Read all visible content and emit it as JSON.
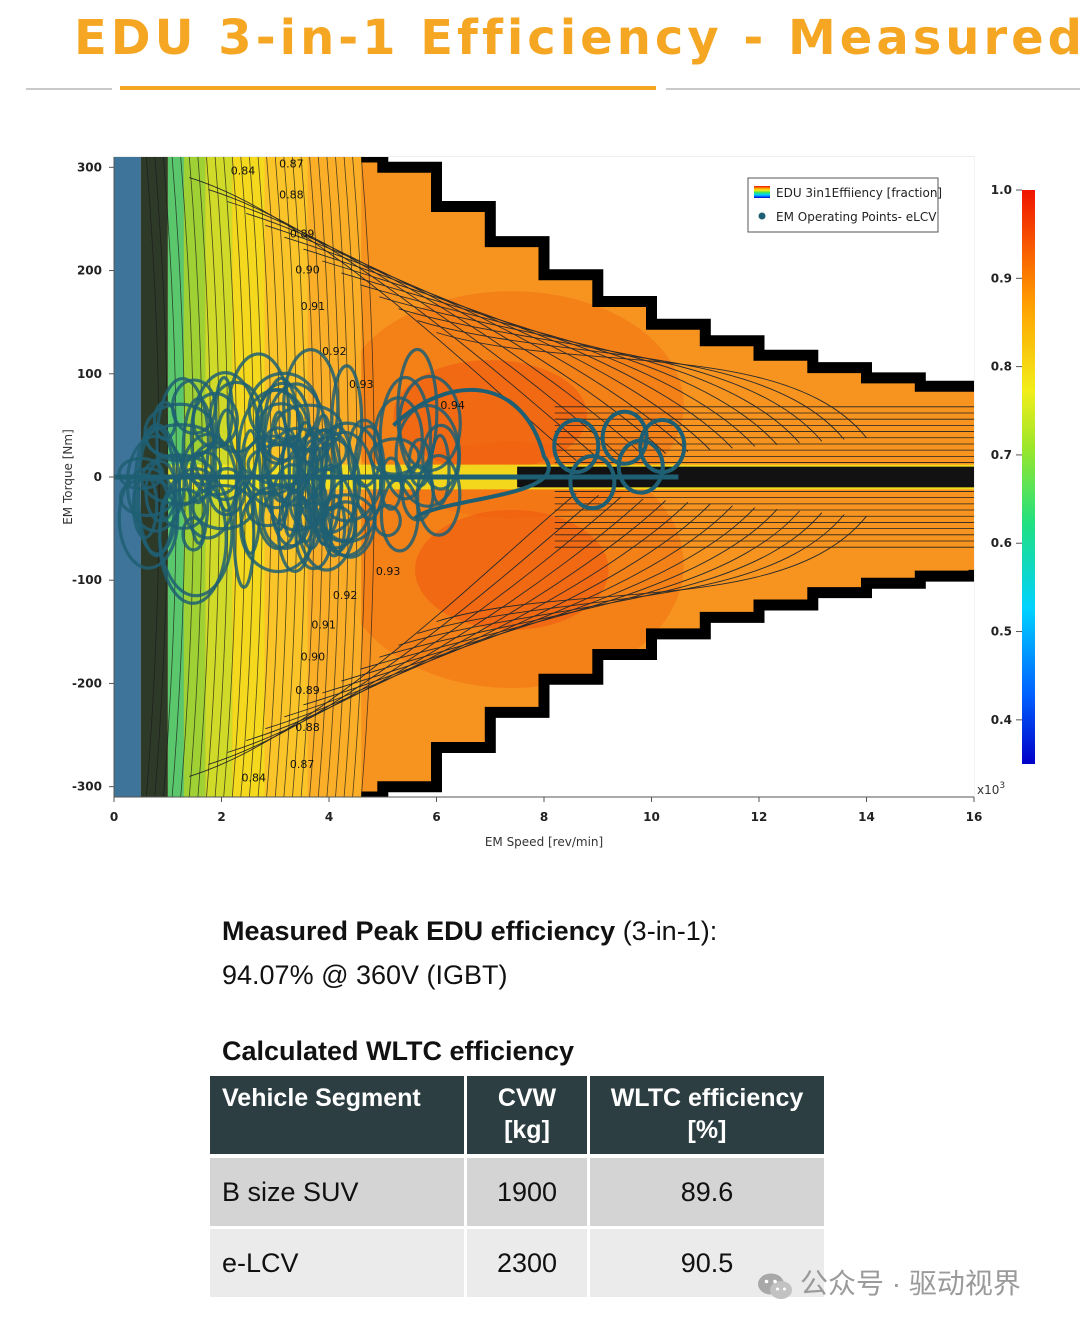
{
  "page": {
    "title": "EDU 3-in-1 Efficiency - Measured"
  },
  "colors": {
    "accent": "#f5a623",
    "table_header": "#2c3e42",
    "row_dark": "#d4d4d4",
    "row_light": "#ebebeb",
    "operating_points": "#1f5f73"
  },
  "chart_data": {
    "type": "heatmap",
    "xlabel": "EM Speed [rev/min]",
    "ylabel": "EM Torque [Nm]",
    "x_multiplier": "x10",
    "x_multiplier_exp": "3",
    "xlim": [
      0,
      16
    ],
    "ylim": [
      -310,
      310
    ],
    "x_ticks": [
      "0",
      "2",
      "4",
      "6",
      "8",
      "10",
      "12",
      "14",
      "16"
    ],
    "y_ticks": [
      "300",
      "200",
      "100",
      "0",
      "-100",
      "-200",
      "-300"
    ],
    "colorbar": {
      "range": [
        0.35,
        1.0
      ],
      "ticks": [
        "1.0",
        "0.9",
        "0.8",
        "0.7",
        "0.6",
        "0.5",
        "0.4"
      ]
    },
    "legend": {
      "placement": "top-right",
      "entries": [
        "EDU 3in1Effiiency [fraction]",
        "EM Operating Points- eLCV"
      ]
    },
    "contour_labels": [
      {
        "text": "0.84",
        "x": 2.4,
        "y": 293
      },
      {
        "text": "0.87",
        "x": 3.3,
        "y": 300
      },
      {
        "text": "0.88",
        "x": 3.3,
        "y": 270
      },
      {
        "text": "0.89",
        "x": 3.5,
        "y": 232
      },
      {
        "text": "0.90",
        "x": 3.6,
        "y": 197
      },
      {
        "text": "0.91",
        "x": 3.7,
        "y": 162
      },
      {
        "text": "0.92",
        "x": 4.1,
        "y": 118
      },
      {
        "text": "0.93",
        "x": 4.6,
        "y": 86
      },
      {
        "text": "0.94",
        "x": 6.3,
        "y": 66
      },
      {
        "text": "0.93",
        "x": 5.1,
        "y": -95
      },
      {
        "text": "0.92",
        "x": 4.3,
        "y": -118
      },
      {
        "text": "0.91",
        "x": 3.9,
        "y": -147
      },
      {
        "text": "0.90",
        "x": 3.7,
        "y": -178
      },
      {
        "text": "0.89",
        "x": 3.6,
        "y": -210
      },
      {
        "text": "0.88",
        "x": 3.6,
        "y": -246
      },
      {
        "text": "0.87",
        "x": 3.5,
        "y": -282
      },
      {
        "text": "0.84",
        "x": 2.6,
        "y": -295
      }
    ],
    "torque_envelope": {
      "speed_krpm": [
        0,
        4.6,
        5.0,
        6.0,
        7.0,
        8.0,
        9.0,
        10.0,
        11.0,
        12.0,
        13.0,
        14.0,
        15.0,
        16.0
      ],
      "torque_max_nm": [
        310,
        310,
        300,
        262,
        228,
        196,
        170,
        148,
        132,
        118,
        106,
        96,
        88,
        84
      ],
      "torque_min_nm": [
        -310,
        -310,
        -300,
        -262,
        -228,
        -196,
        -172,
        -152,
        -136,
        -124,
        -112,
        -103,
        -96,
        -90
      ]
    },
    "peak_efficiency": 0.9407
  },
  "summary": {
    "peak_label_bold": "Measured Peak EDU efficiency",
    "peak_label_rest": " (3-in-1):",
    "peak_value": "94.07% @ 360V (IGBT)"
  },
  "wltc": {
    "title": "Calculated WLTC efficiency",
    "headers": [
      "Vehicle Segment",
      "CVW\n[kg]",
      "WLTC efficiency\n[%]"
    ],
    "rows": [
      [
        "B size SUV",
        "1900",
        "89.6"
      ],
      [
        "e-LCV",
        "2300",
        "90.5"
      ]
    ]
  },
  "watermark": {
    "text": "公众号 · 驱动视界",
    "icon": "wechat-icon"
  }
}
